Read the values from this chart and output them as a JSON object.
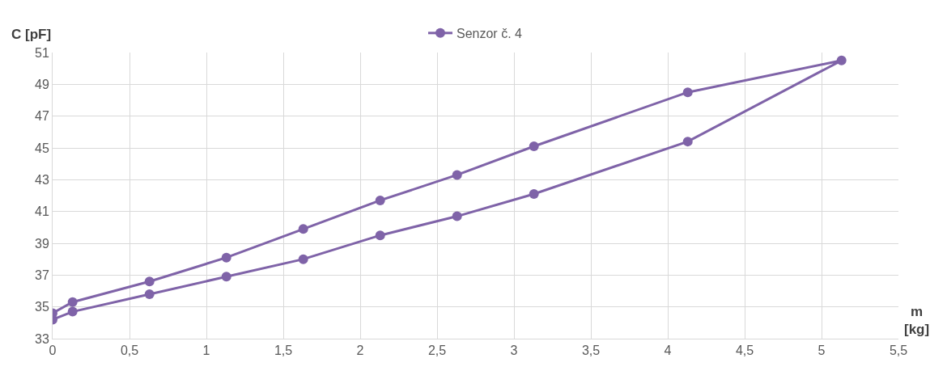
{
  "chart_data": {
    "type": "line",
    "xlabel": "m [kg]",
    "ylabel": "C [pF]",
    "series": [
      {
        "name": "Senzor č. 4",
        "color": "#7f63a8",
        "x": [
          0,
          0.13,
          0.63,
          1.13,
          1.63,
          2.13,
          2.63,
          3.13,
          4.13,
          5.13,
          4.13,
          3.13,
          2.63,
          2.13,
          1.63,
          1.13,
          0.63,
          0.13,
          0
        ],
        "values": [
          34.2,
          34.7,
          35.8,
          36.9,
          38.0,
          39.5,
          40.7,
          42.1,
          45.4,
          50.5,
          48.5,
          45.1,
          43.3,
          41.7,
          39.9,
          38.1,
          36.6,
          35.3,
          34.6
        ]
      }
    ],
    "xlim": [
      0,
      5.5
    ],
    "xticks": [
      {
        "value": 0,
        "label": "0"
      },
      {
        "value": 0.5,
        "label": "0,5"
      },
      {
        "value": 1,
        "label": "1"
      },
      {
        "value": 1.5,
        "label": "1,5"
      },
      {
        "value": 2,
        "label": "2"
      },
      {
        "value": 2.5,
        "label": "2,5"
      },
      {
        "value": 3,
        "label": "3"
      },
      {
        "value": 3.5,
        "label": "3,5"
      },
      {
        "value": 4,
        "label": "4"
      },
      {
        "value": 4.5,
        "label": "4,5"
      },
      {
        "value": 5,
        "label": "5"
      },
      {
        "value": 5.5,
        "label": "5,5"
      }
    ],
    "ylim": [
      33,
      51
    ],
    "yticks": [
      33,
      35,
      37,
      39,
      41,
      43,
      45,
      47,
      49,
      51
    ],
    "grid": true,
    "legend": "top",
    "marker": "circle",
    "line_style": "solid"
  }
}
